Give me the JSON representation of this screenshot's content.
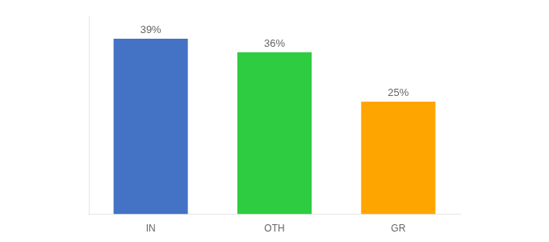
{
  "chart_data": {
    "type": "bar",
    "categories": [
      "IN",
      "OTH",
      "GR"
    ],
    "values": [
      39,
      36,
      25
    ],
    "value_labels": [
      "39%",
      "36%",
      "25%"
    ],
    "colors": [
      "#4472C4",
      "#2ECC40",
      "#FFA500"
    ],
    "ylim": [
      0,
      44
    ],
    "grid": false,
    "tick_labels": "x",
    "data_labels": true
  }
}
